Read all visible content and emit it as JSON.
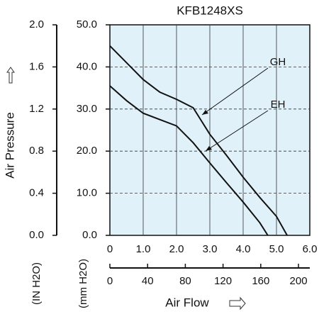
{
  "chart_data": {
    "type": "line",
    "title": "KFB1248XS",
    "y_label": "Air Pressure",
    "y2_unit": "(IN H2O)",
    "y_unit": "(mm H2O)",
    "x_label": "Air Flow",
    "xlim": [
      0,
      6
    ],
    "xticks": [
      0,
      {
        "value": 1,
        "label": "1.0"
      },
      {
        "value": 2,
        "label": "2.0"
      },
      {
        "value": 3,
        "label": "3.0"
      },
      {
        "value": 4,
        "label": "4.0"
      },
      {
        "value": 5,
        "label": "5.0"
      },
      {
        "value": 6,
        "label": "6.0"
      }
    ],
    "x2lim": [
      0,
      212
    ],
    "x2ticks": [
      0,
      40,
      80,
      120,
      160,
      200
    ],
    "ylim": [
      0,
      50
    ],
    "yticks": [
      {
        "value": 0,
        "label": "0.0"
      },
      {
        "value": 10,
        "label": "10.0"
      },
      {
        "value": 20,
        "label": "20.0"
      },
      {
        "value": 30,
        "label": "30.0"
      },
      {
        "value": 40,
        "label": "40.0"
      },
      {
        "value": 50,
        "label": "50.0"
      }
    ],
    "y2lim": [
      0,
      2
    ],
    "y2ticks": [
      {
        "value": 0,
        "label": "0.0"
      },
      {
        "value": 0.4,
        "label": "0.4"
      },
      {
        "value": 0.8,
        "label": "0.8"
      },
      {
        "value": 1.2,
        "label": "1.2"
      },
      {
        "value": 1.6,
        "label": "1.6"
      },
      {
        "value": 2,
        "label": "2.0"
      }
    ],
    "background": "#e0f1f9",
    "grid": true,
    "series": [
      {
        "name": "GH",
        "color": "#111111",
        "x": [
          0,
          0.5,
          1,
          1.5,
          2,
          2.5,
          3,
          3.5,
          4,
          4.5,
          5,
          5.32
        ],
        "values": [
          45,
          41,
          37,
          34,
          32.3,
          30.3,
          24,
          19,
          13.8,
          9,
          4.5,
          0
        ]
      },
      {
        "name": "EH",
        "color": "#111111",
        "x": [
          0,
          0.5,
          1,
          1.5,
          2,
          2.5,
          3,
          3.5,
          4,
          4.5,
          4.74
        ],
        "values": [
          35.5,
          32,
          29,
          27.5,
          26,
          22,
          17.2,
          12.5,
          7.9,
          3,
          0
        ]
      }
    ]
  }
}
